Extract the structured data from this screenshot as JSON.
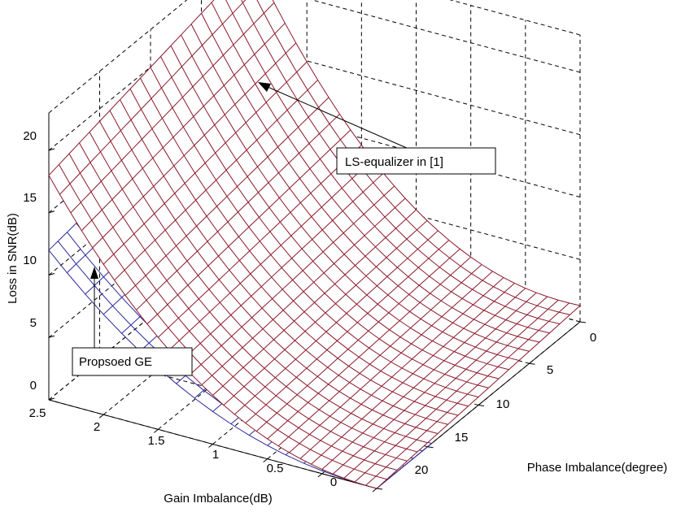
{
  "chart_data": {
    "type": "surface3d",
    "title": "",
    "xlabel": "Gain Imbalance(dB)",
    "ylabel": "Phase Imbalance(degree)",
    "zlabel": "Loss in SNR(dB)",
    "x_ticks": [
      "2.5",
      "2",
      "1.5",
      "1",
      "0.5",
      "0"
    ],
    "x_tick_values": [
      2.5,
      2,
      1.5,
      1,
      0.5,
      0
    ],
    "y_ticks": [
      "0",
      "5",
      "10",
      "15",
      "20"
    ],
    "y_tick_values": [
      0,
      5,
      10,
      15,
      20
    ],
    "z_ticks": [
      "0",
      "5",
      "10",
      "15",
      "20"
    ],
    "z_tick_values": [
      0,
      5,
      10,
      15,
      20
    ],
    "xlim": [
      0,
      3
    ],
    "ylim": [
      0,
      20
    ],
    "zlim": [
      0,
      20
    ],
    "grid": true,
    "series": [
      {
        "name": "LS-equalizer in [1]",
        "color": "#8b1a2b",
        "corner_values": {
          "x0_y0": 0,
          "x0_y20": 1.3,
          "x3_y0": 18,
          "x3_y20": 22
        }
      },
      {
        "name": "Propsoed GE",
        "color": "#2b2b9a",
        "corner_values": {
          "x3_y0": 12
        }
      }
    ],
    "annotations": [
      {
        "text": "LS-equalizer in [1]"
      },
      {
        "text": "Propsoed GE"
      }
    ]
  }
}
